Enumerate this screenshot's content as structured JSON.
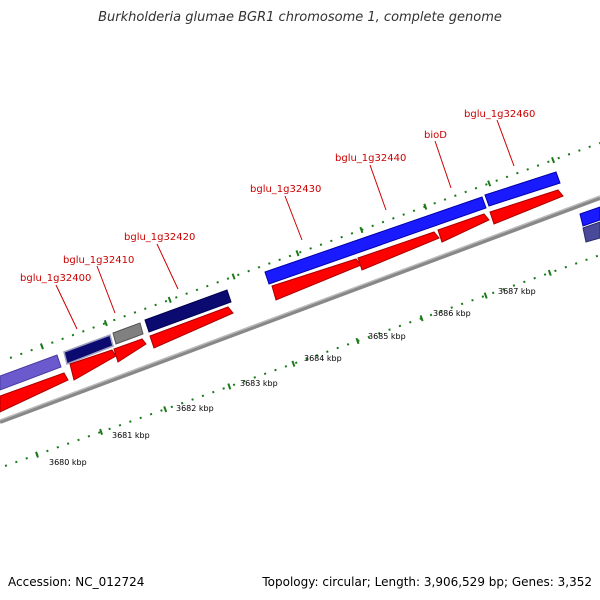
{
  "title": "Burkholderia glumae BGR1 chromosome 1, complete genome",
  "footer": {
    "accession": "Accession: NC_012724",
    "topology": "Topology: circular; Length: 3,906,529 bp; Genes: 3,352"
  },
  "gene_labels": [
    "bglu_1g32400",
    "bglu_1g32410",
    "bglu_1g32420",
    "bglu_1g32430",
    "bglu_1g32440",
    "bioD",
    "bglu_1g32460"
  ],
  "kbp_labels": [
    "3680 kbp",
    "3681 kbp",
    "3682 kbp",
    "3683 kbp",
    "3684 kbp",
    "3685 kbp",
    "3686 kbp",
    "3687 kbp"
  ],
  "colors": {
    "label_red": "#cc0000",
    "cds_red": "#ff0000",
    "gene_blue": "#1a1aff",
    "gene_navy": "#0a0a70",
    "gene_purple": "#6a5acd",
    "gene_gray": "#808080",
    "backbone": "#999999",
    "tick_green": "#1a7a1a"
  }
}
